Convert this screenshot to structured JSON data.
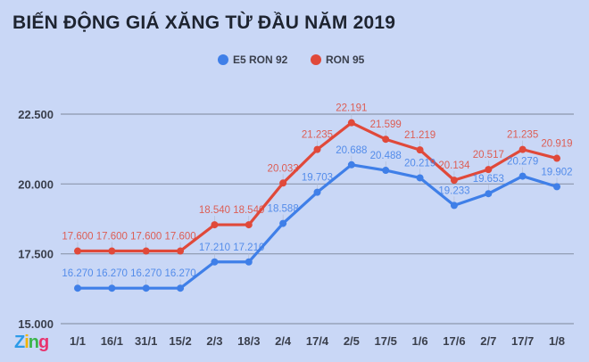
{
  "chart_data": {
    "type": "line",
    "title": "BIẾN ĐỘNG GIÁ XĂNG TỪ ĐẦU NĂM 2019",
    "categories": [
      "1/1",
      "16/1",
      "31/1",
      "15/2",
      "2/3",
      "18/3",
      "2/4",
      "17/4",
      "2/5",
      "17/5",
      "1/6",
      "17/6",
      "2/7",
      "17/7",
      "1/8"
    ],
    "series": [
      {
        "name": "E5 RON 92",
        "color": "#3f7fe8",
        "values": [
          16270,
          16270,
          16270,
          16270,
          17210,
          17210,
          18588,
          19703,
          20688,
          20488,
          20219,
          19233,
          19653,
          20279,
          19902
        ],
        "labels": [
          "16.270",
          "16.270",
          "16.270",
          "16.270",
          "17.210",
          "17.210",
          "18.588",
          "19.703",
          "20.688",
          "20.488",
          "20.219",
          "19.233",
          "19.653",
          "20.279",
          "19.902"
        ]
      },
      {
        "name": "RON 95",
        "color": "#e0493a",
        "values": [
          17600,
          17600,
          17600,
          17600,
          18540,
          18540,
          20033,
          21235,
          22191,
          21599,
          21219,
          20134,
          20517,
          21235,
          20919
        ],
        "labels": [
          "17.600",
          "17.600",
          "17.600",
          "17.600",
          "18.540",
          "18.540",
          "20.033",
          "21.235",
          "22.191",
          "21.599",
          "21.219",
          "20.134",
          "20.517",
          "21.235",
          "20.919"
        ]
      }
    ],
    "yticks": [
      15000,
      17500,
      20000,
      22500
    ],
    "ytick_labels": [
      "15.000",
      "17.500",
      "20.000",
      "22.500"
    ],
    "ylim": [
      15000,
      22500
    ],
    "grid": true,
    "legend": "top-center"
  },
  "logo": "Zing"
}
